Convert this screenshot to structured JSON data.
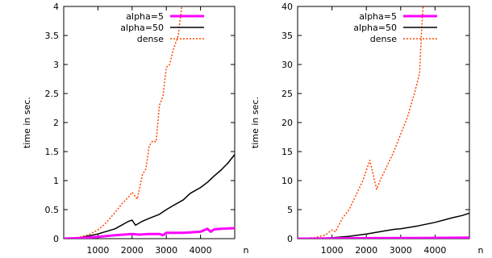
{
  "chart_data": [
    {
      "type": "line",
      "xlabel": "n",
      "ylabel": "time in sec.",
      "xlim": [
        0,
        5000
      ],
      "ylim": [
        0,
        4
      ],
      "xticks": [
        1000,
        2000,
        3000,
        4000
      ],
      "xtick_labels": [
        "1000",
        "2000",
        "3000",
        "4000"
      ],
      "yticks": [
        0,
        0.5,
        1,
        1.5,
        2,
        2.5,
        3,
        3.5,
        4
      ],
      "ytick_labels": [
        "0",
        "0.5",
        "1",
        "1.5",
        "2",
        "2.5",
        "3",
        "3.5",
        "4"
      ],
      "legend_position": "top-center",
      "series": [
        {
          "name": "alpha=5",
          "color": "#ff00ff",
          "style": "solid-thick",
          "x": [
            0,
            500,
            1000,
            1500,
            2000,
            2200,
            2500,
            2800,
            2900,
            3000,
            3500,
            4000,
            4200,
            4300,
            4400,
            4600,
            5000
          ],
          "y": [
            0.0,
            0.01,
            0.03,
            0.06,
            0.08,
            0.07,
            0.08,
            0.08,
            0.06,
            0.1,
            0.1,
            0.12,
            0.17,
            0.12,
            0.16,
            0.17,
            0.18
          ]
        },
        {
          "name": "alpha=50",
          "color": "#000000",
          "style": "solid",
          "x": [
            0,
            500,
            1000,
            1500,
            1900,
            2000,
            2100,
            2300,
            2500,
            2800,
            3000,
            3200,
            3500,
            3700,
            4000,
            4200,
            4400,
            4600,
            4800,
            5000
          ],
          "y": [
            0.0,
            0.02,
            0.08,
            0.17,
            0.3,
            0.32,
            0.23,
            0.3,
            0.35,
            0.42,
            0.5,
            0.57,
            0.67,
            0.78,
            0.88,
            0.97,
            1.08,
            1.18,
            1.3,
            1.45
          ]
        },
        {
          "name": "dense",
          "color": "#ff4500",
          "style": "dotted",
          "x": [
            0,
            400,
            700,
            1000,
            1200,
            1500,
            1700,
            1900,
            2000,
            2100,
            2150,
            2300,
            2400,
            2500,
            2600,
            2700,
            2800,
            2900,
            3000,
            3100,
            3200,
            3350,
            3450
          ],
          "y": [
            0.0,
            0.02,
            0.06,
            0.15,
            0.25,
            0.45,
            0.6,
            0.72,
            0.8,
            0.72,
            0.68,
            1.1,
            1.2,
            1.6,
            1.68,
            1.67,
            2.3,
            2.45,
            2.95,
            3.0,
            3.25,
            3.5,
            4.0
          ]
        }
      ]
    },
    {
      "type": "line",
      "xlabel": "n",
      "ylabel": "time in sec.",
      "xlim": [
        0,
        5000
      ],
      "ylim": [
        0,
        40
      ],
      "xticks": [
        1000,
        2000,
        3000,
        4000
      ],
      "xtick_labels": [
        "1000",
        "2000",
        "3000",
        "4000"
      ],
      "yticks": [
        0,
        5,
        10,
        15,
        20,
        25,
        30,
        35,
        40
      ],
      "ytick_labels": [
        "0",
        "5",
        "10",
        "15",
        "20",
        "25",
        "30",
        "35",
        "40"
      ],
      "legend_position": "top-center",
      "series": [
        {
          "name": "alpha=5",
          "color": "#ff00ff",
          "style": "solid-thick",
          "x": [
            0,
            1000,
            2000,
            3000,
            4000,
            5000
          ],
          "y": [
            0.0,
            0.03,
            0.08,
            0.1,
            0.12,
            0.18
          ]
        },
        {
          "name": "alpha=50",
          "color": "#000000",
          "style": "solid",
          "x": [
            0,
            500,
            1000,
            1500,
            2000,
            2500,
            2800,
            3000,
            3500,
            4000,
            4500,
            4800,
            5000
          ],
          "y": [
            0.0,
            0.05,
            0.15,
            0.4,
            0.8,
            1.3,
            1.6,
            1.7,
            2.2,
            2.8,
            3.6,
            4.0,
            4.4
          ]
        },
        {
          "name": "dense",
          "color": "#ff4500",
          "style": "dotted",
          "x": [
            0,
            500,
            800,
            1000,
            1100,
            1300,
            1500,
            1700,
            1900,
            2100,
            2200,
            2300,
            2400,
            2600,
            2800,
            3000,
            3200,
            3400,
            3550,
            3600,
            3650
          ],
          "y": [
            0.0,
            0.2,
            0.6,
            1.5,
            1.2,
            3.5,
            5.0,
            7.5,
            10.0,
            13.5,
            11.0,
            8.5,
            10.0,
            12.5,
            15.0,
            18.0,
            21.0,
            25.0,
            28.5,
            35.0,
            40.0
          ]
        }
      ]
    }
  ]
}
